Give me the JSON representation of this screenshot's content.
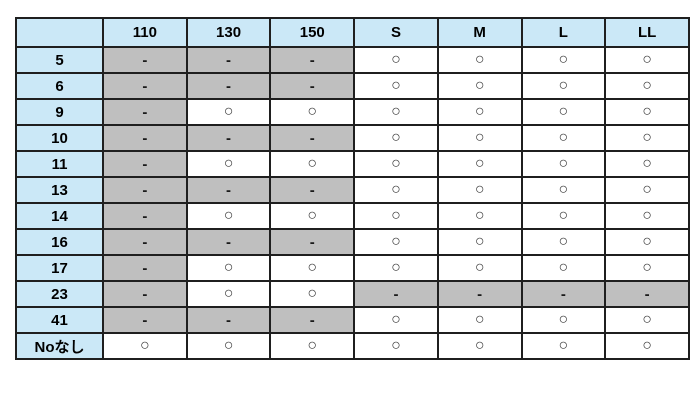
{
  "chart_data": {
    "type": "table",
    "corner_label": "",
    "columns": [
      "110",
      "130",
      "150",
      "S",
      "M",
      "L",
      "LL"
    ],
    "rows": [
      {
        "label": "5",
        "cells": [
          "-",
          "-",
          "-",
          "○",
          "○",
          "○",
          "○"
        ]
      },
      {
        "label": "6",
        "cells": [
          "-",
          "-",
          "-",
          "○",
          "○",
          "○",
          "○"
        ]
      },
      {
        "label": "9",
        "cells": [
          "-",
          "○",
          "○",
          "○",
          "○",
          "○",
          "○"
        ]
      },
      {
        "label": "10",
        "cells": [
          "-",
          "-",
          "-",
          "○",
          "○",
          "○",
          "○"
        ]
      },
      {
        "label": "11",
        "cells": [
          "-",
          "○",
          "○",
          "○",
          "○",
          "○",
          "○"
        ]
      },
      {
        "label": "13",
        "cells": [
          "-",
          "-",
          "-",
          "○",
          "○",
          "○",
          "○"
        ]
      },
      {
        "label": "14",
        "cells": [
          "-",
          "○",
          "○",
          "○",
          "○",
          "○",
          "○"
        ]
      },
      {
        "label": "16",
        "cells": [
          "-",
          "-",
          "-",
          "○",
          "○",
          "○",
          "○"
        ]
      },
      {
        "label": "17",
        "cells": [
          "-",
          "○",
          "○",
          "○",
          "○",
          "○",
          "○"
        ]
      },
      {
        "label": "23",
        "cells": [
          "-",
          "○",
          "○",
          "-",
          "-",
          "-",
          "-"
        ]
      },
      {
        "label": "41",
        "cells": [
          "-",
          "-",
          "-",
          "○",
          "○",
          "○",
          "○"
        ]
      },
      {
        "label": "Noなし",
        "cells": [
          "○",
          "○",
          "○",
          "○",
          "○",
          "○",
          "○"
        ]
      }
    ],
    "symbols": {
      "available": "○",
      "unavailable": "-"
    }
  },
  "colors": {
    "header_bg": "#cbe8f7",
    "unavailable_bg": "#bfbfbf",
    "available_bg": "#ffffff",
    "border": "#1f1f1f",
    "text": "#000000"
  }
}
